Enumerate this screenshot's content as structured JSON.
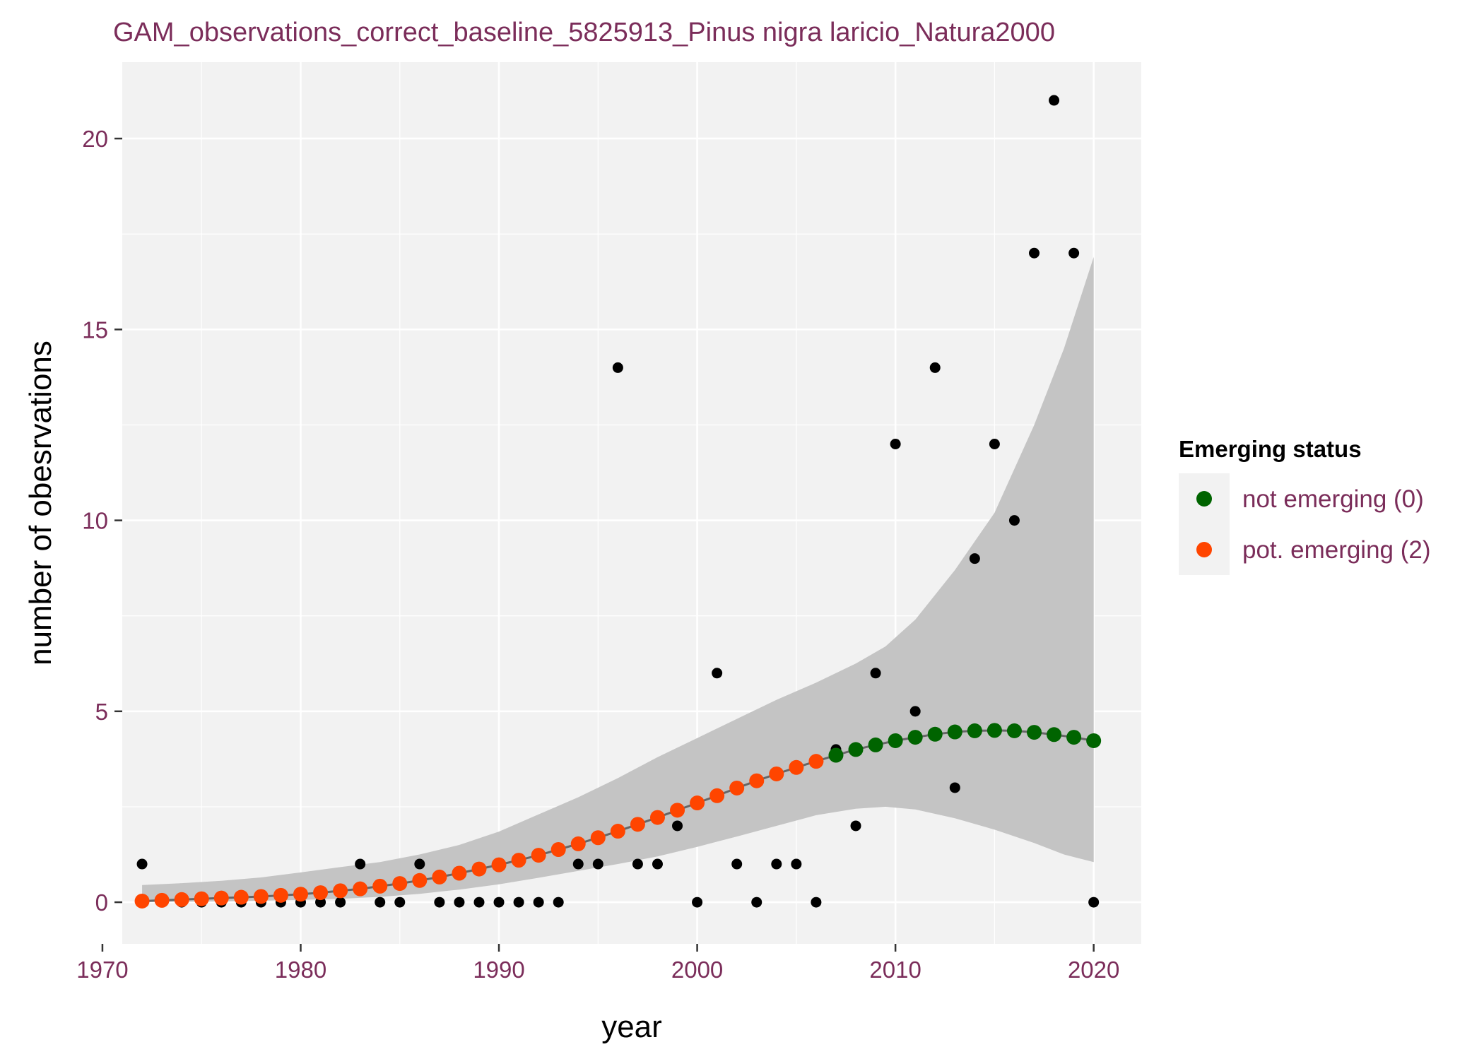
{
  "chart_data": {
    "type": "scatter",
    "title": "GAM_observations_correct_baseline_5825913_Pinus nigra laricio_Natura2000",
    "xlabel": "year",
    "ylabel": "number of obesrvations",
    "xlim": [
      1971,
      2022.4
    ],
    "ylim": [
      -1.09,
      22.0
    ],
    "x_ticks": [
      1970,
      1980,
      1990,
      2000,
      2010,
      2020
    ],
    "y_ticks": [
      0,
      5,
      10,
      15,
      20
    ],
    "grid": true,
    "legend": {
      "title": "Emerging status",
      "placement": "right",
      "entries": [
        {
          "label": "not emerging (0)",
          "color": "#006400"
        },
        {
          "label": "pot. emerging (2)",
          "color": "#ff4500"
        }
      ]
    },
    "colors": {
      "panel_background": "#f2f2f2",
      "grid": "#ffffff",
      "ribbon": "#c4c4c4",
      "observed": "#000000",
      "fit_line": "#666666"
    },
    "observed_points": {
      "x": [
        1972,
        1973,
        1974,
        1975,
        1976,
        1977,
        1978,
        1979,
        1980,
        1981,
        1982,
        1983,
        1984,
        1985,
        1986,
        1987,
        1988,
        1989,
        1990,
        1991,
        1992,
        1993,
        1994,
        1995,
        1996,
        1997,
        1998,
        1999,
        2000,
        2001,
        2002,
        2003,
        2004,
        2005,
        2006,
        2007,
        2008,
        2009,
        2010,
        2011,
        2012,
        2013,
        2014,
        2015,
        2016,
        2017,
        2018,
        2019,
        2020
      ],
      "y": [
        1,
        0,
        0,
        0,
        0,
        0,
        0,
        0,
        0,
        0,
        0,
        1,
        0,
        0,
        1,
        0,
        0,
        0,
        0,
        0,
        0,
        0,
        1,
        1,
        14,
        1,
        1,
        2,
        0,
        6,
        1,
        0,
        1,
        1,
        0,
        4,
        2,
        6,
        12,
        5,
        14,
        3,
        9,
        12,
        10,
        17,
        21,
        17,
        0
      ]
    },
    "fitted_series": {
      "x": [
        1972,
        1973,
        1974,
        1975,
        1976,
        1977,
        1978,
        1979,
        1980,
        1981,
        1982,
        1983,
        1984,
        1985,
        1986,
        1987,
        1988,
        1989,
        1990,
        1991,
        1992,
        1993,
        1994,
        1995,
        1996,
        1997,
        1998,
        1999,
        2000,
        2001,
        2002,
        2003,
        2004,
        2005,
        2006,
        2007,
        2008,
        2009,
        2010,
        2011,
        2012,
        2013,
        2014,
        2015,
        2016,
        2017,
        2018,
        2019,
        2020
      ],
      "y": [
        0.03,
        0.05,
        0.07,
        0.09,
        0.11,
        0.13,
        0.15,
        0.18,
        0.21,
        0.25,
        0.3,
        0.35,
        0.42,
        0.49,
        0.57,
        0.66,
        0.76,
        0.87,
        0.98,
        1.1,
        1.23,
        1.38,
        1.53,
        1.69,
        1.86,
        2.04,
        2.22,
        2.41,
        2.6,
        2.79,
        2.99,
        3.18,
        3.36,
        3.53,
        3.69,
        3.85,
        4.0,
        4.12,
        4.23,
        4.32,
        4.4,
        4.46,
        4.49,
        4.5,
        4.49,
        4.45,
        4.39,
        4.32,
        4.23
      ],
      "status": [
        2,
        2,
        2,
        2,
        2,
        2,
        2,
        2,
        2,
        2,
        2,
        2,
        2,
        2,
        2,
        2,
        2,
        2,
        2,
        2,
        2,
        2,
        2,
        2,
        2,
        2,
        2,
        2,
        2,
        2,
        2,
        2,
        2,
        2,
        2,
        0,
        0,
        0,
        0,
        0,
        0,
        0,
        0,
        0,
        0,
        0,
        0,
        0,
        0
      ]
    },
    "ribbon": {
      "x": [
        1972,
        1974,
        1976,
        1978,
        1980,
        1982,
        1984,
        1986,
        1988,
        1990,
        1992,
        1994,
        1996,
        1998,
        2000,
        2002,
        2004,
        2006,
        2008,
        2009.5,
        2011,
        2013,
        2015,
        2017,
        2018.5,
        2020
      ],
      "lower": [
        0,
        0.01,
        0.02,
        0.04,
        0.06,
        0.09,
        0.14,
        0.22,
        0.33,
        0.47,
        0.64,
        0.82,
        1.0,
        1.2,
        1.45,
        1.72,
        2.0,
        2.28,
        2.45,
        2.5,
        2.43,
        2.2,
        1.9,
        1.55,
        1.25,
        1.05
      ],
      "upper": [
        0.45,
        0.5,
        0.56,
        0.65,
        0.78,
        0.92,
        1.05,
        1.25,
        1.5,
        1.85,
        2.3,
        2.75,
        3.25,
        3.8,
        4.3,
        4.8,
        5.3,
        5.75,
        6.25,
        6.7,
        7.4,
        8.7,
        10.2,
        12.5,
        14.5,
        16.9
      ]
    }
  }
}
